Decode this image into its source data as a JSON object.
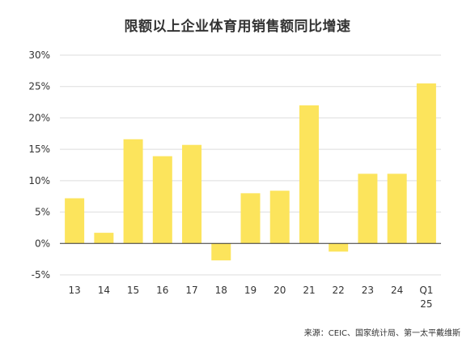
{
  "chart_data": {
    "type": "bar",
    "title": "限额以上企业体育用销售额同比增速",
    "categories": [
      "13",
      "14",
      "15",
      "16",
      "17",
      "18",
      "19",
      "20",
      "21",
      "22",
      "23",
      "24",
      "Q1|25"
    ],
    "values": [
      7.2,
      1.7,
      16.6,
      13.9,
      15.7,
      -2.7,
      8.0,
      8.4,
      22.0,
      -1.3,
      11.1,
      11.1,
      25.5
    ],
    "ylim": [
      -5,
      30
    ],
    "yticks": [
      -5,
      0,
      5,
      10,
      15,
      20,
      25,
      30
    ],
    "ytick_labels": [
      "-5%",
      "0%",
      "5%",
      "10%",
      "15%",
      "20%",
      "25%",
      "30%"
    ],
    "xlabel": "",
    "ylabel": "",
    "grid": true,
    "bar_color": "#FCE45C",
    "grid_color": "#DDDDDD",
    "axis_color": "#333333"
  },
  "source": "来源：CEIC、国家统计局、第一太平戴维斯"
}
